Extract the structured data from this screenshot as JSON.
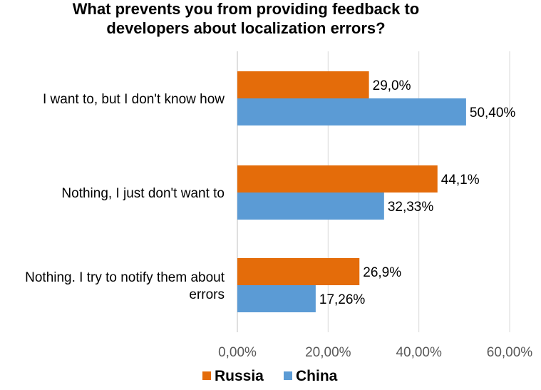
{
  "chart_data": {
    "type": "bar",
    "orientation": "horizontal",
    "title_lines": [
      "What prevents you from providing feedback to",
      "developers about localization errors?"
    ],
    "categories": [
      [
        "I want to, but I don't know how"
      ],
      [
        "Nothing, I just don't want to"
      ],
      [
        "Nothing. I try to notify them about",
        "errors"
      ]
    ],
    "series": [
      {
        "name": "Russia",
        "color": "#E46C0A",
        "values": [
          29.0,
          44.1,
          26.9
        ],
        "labels": [
          "29,0%",
          "44,1%",
          "26,9%"
        ]
      },
      {
        "name": "China",
        "color": "#5B9BD5",
        "values": [
          50.4,
          32.33,
          17.26
        ],
        "labels": [
          "50,40%",
          "32,33%",
          "17,26%"
        ]
      }
    ],
    "xlim": [
      0,
      60
    ],
    "ticks": [
      0,
      20,
      40,
      60
    ],
    "tick_labels": [
      "0,00%",
      "20,00%",
      "40,00%",
      "60,00%"
    ],
    "grid": true,
    "legend_position": "bottom"
  }
}
